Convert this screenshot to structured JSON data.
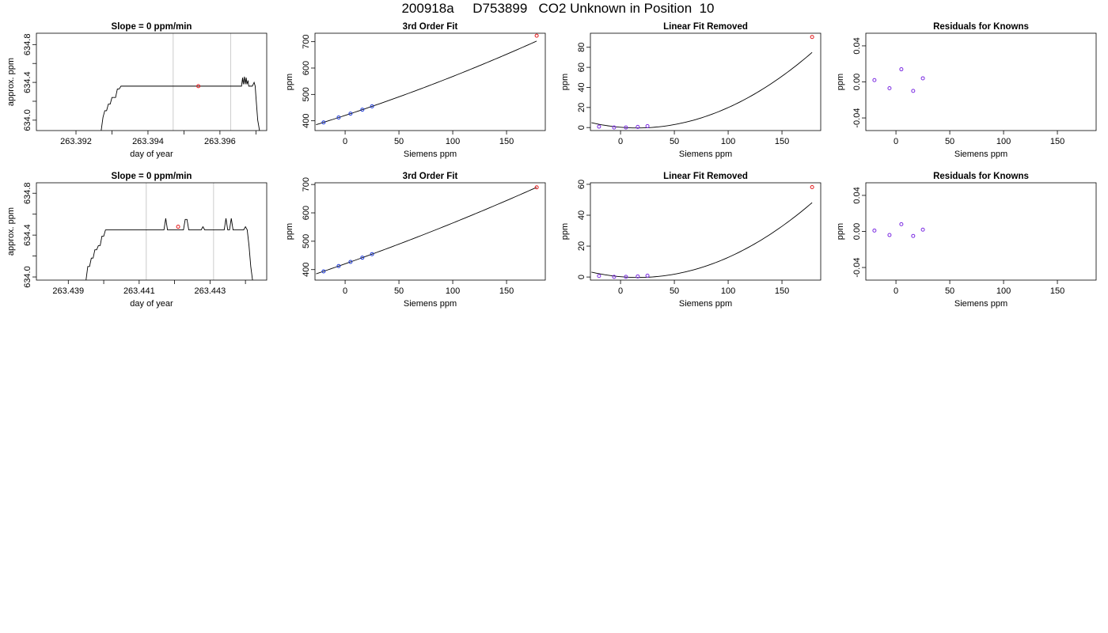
{
  "page_title": "200918a     D753899   CO2 Unknown in Position  10",
  "chart_data": [
    {
      "type": "line",
      "title": "Slope =  0  ppm/min",
      "xlabel": "day of year",
      "ylabel": "approx. ppm",
      "xlim": [
        263.3909,
        263.3973
      ],
      "ylim": [
        633.89,
        634.92
      ],
      "xticks": [
        263.392,
        263.393,
        263.394,
        263.395,
        263.396,
        263.397
      ],
      "xtick_labels": [
        "263.392",
        "",
        "263.394",
        "",
        "263.396",
        ""
      ],
      "yticks": [
        634.0,
        634.2,
        634.4,
        634.6,
        634.8
      ],
      "ytick_labels": [
        "634.0",
        "",
        "634.4",
        "",
        "634.8"
      ],
      "vlines": [
        263.3947,
        263.3963
      ],
      "vline_color": "#cccccc",
      "line_color": "#000000",
      "series": [
        {
          "x": [
            263.3927,
            263.39275,
            263.3928,
            263.39285,
            263.3929,
            263.39295,
            263.393,
            263.39305,
            263.3931,
            263.39315,
            263.3932,
            263.39325,
            263.3933,
            263.3966,
            263.39663,
            263.39665,
            263.39668,
            263.3967,
            263.39673,
            263.39675,
            263.39678,
            263.3968,
            263.39685,
            263.3969,
            263.39695,
            263.39698,
            263.397,
            263.39705,
            263.3971
          ],
          "y": [
            633.89,
            634.03,
            634.1,
            634.1,
            634.17,
            634.17,
            634.24,
            634.24,
            634.24,
            634.33,
            634.33,
            634.36,
            634.36,
            634.36,
            634.45,
            634.38,
            634.46,
            634.38,
            634.45,
            634.38,
            634.42,
            634.36,
            634.36,
            634.36,
            634.4,
            634.36,
            634.25,
            634.0,
            633.89
          ]
        }
      ],
      "highlight_points": [
        {
          "x": 263.3954,
          "y": 634.36,
          "color": "#e41a1c"
        }
      ]
    },
    {
      "type": "scatter",
      "title": "3rd Order Fit",
      "xlabel": "Siemens ppm",
      "ylabel": "ppm",
      "xlim": [
        -28,
        186
      ],
      "ylim": [
        363,
        732
      ],
      "xticks": [
        0,
        50,
        100,
        150
      ],
      "xtick_labels": [
        "0",
        "50",
        "100",
        "150"
      ],
      "yticks": [
        400,
        500,
        600,
        700
      ],
      "ytick_labels": [
        "400",
        "500",
        "600",
        "700"
      ],
      "fit_curve": {
        "a": 420.4,
        "b": 1.34,
        "c": 0.00137,
        "x0": -27,
        "x1": 178
      },
      "points": [
        {
          "x": -20,
          "y": 393.8,
          "color": "#1f3bd9"
        },
        {
          "x": -6,
          "y": 412.4,
          "color": "#1f3bd9"
        },
        {
          "x": 5,
          "y": 427.1,
          "color": "#1f3bd9"
        },
        {
          "x": 16,
          "y": 442.2,
          "color": "#1f3bd9"
        },
        {
          "x": 25,
          "y": 454.8,
          "color": "#1f3bd9"
        },
        {
          "x": 178,
          "y": 722.6,
          "color": "#e41a1c"
        }
      ]
    },
    {
      "type": "scatter",
      "title": "Linear Fit Removed",
      "xlabel": "Siemens ppm",
      "ylabel": "ppm",
      "xlim": [
        -28,
        186
      ],
      "ylim": [
        -3,
        94
      ],
      "xticks": [
        0,
        50,
        100,
        150
      ],
      "xtick_labels": [
        "0",
        "50",
        "100",
        "150"
      ],
      "yticks": [
        0,
        20,
        40,
        60,
        80
      ],
      "ytick_labels": [
        "0",
        "20",
        "40",
        "60",
        "80"
      ],
      "fit_curve": {
        "a": 0.3,
        "b": -0.09,
        "c": 0.00286,
        "x0": -27,
        "x1": 178
      },
      "points": [
        {
          "x": -20,
          "y": 0.9,
          "color": "#7b2be2"
        },
        {
          "x": -6,
          "y": 0.1,
          "color": "#7b2be2"
        },
        {
          "x": 5,
          "y": 0.1,
          "color": "#7b2be2"
        },
        {
          "x": 16,
          "y": 0.6,
          "color": "#7b2be2"
        },
        {
          "x": 25,
          "y": 1.4,
          "color": "#7b2be2"
        },
        {
          "x": 178,
          "y": 90.3,
          "color": "#e41a1c"
        }
      ]
    },
    {
      "type": "scatter",
      "title": "Residuals for Knowns",
      "xlabel": "Siemens ppm",
      "ylabel": "ppm",
      "xlim": [
        -28,
        186
      ],
      "ylim": [
        -0.054,
        0.054
      ],
      "xticks": [
        0,
        50,
        100,
        150
      ],
      "xtick_labels": [
        "0",
        "50",
        "100",
        "150"
      ],
      "yticks": [
        -0.04,
        0.0,
        0.04
      ],
      "ytick_labels": [
        "-0.04",
        "0.00",
        "0.04"
      ],
      "points": [
        {
          "x": -20,
          "y": 0.002,
          "color": "#7b2be2"
        },
        {
          "x": -6,
          "y": -0.007,
          "color": "#7b2be2"
        },
        {
          "x": 5,
          "y": 0.014,
          "color": "#7b2be2"
        },
        {
          "x": 16,
          "y": -0.01,
          "color": "#7b2be2"
        },
        {
          "x": 25,
          "y": 0.004,
          "color": "#7b2be2"
        }
      ]
    },
    {
      "type": "line",
      "title": "Slope =  0  ppm/min",
      "xlabel": "day of year",
      "ylabel": "approx. ppm",
      "xlim": [
        263.4381,
        263.4446
      ],
      "ylim": [
        633.97,
        634.9
      ],
      "xticks": [
        263.439,
        263.44,
        263.441,
        263.442,
        263.443,
        263.444
      ],
      "xtick_labels": [
        "263.439",
        "",
        "263.441",
        "",
        "263.443",
        ""
      ],
      "yticks": [
        634.0,
        634.2,
        634.4,
        634.6,
        634.8
      ],
      "ytick_labels": [
        "634.0",
        "",
        "634.4",
        "",
        "634.8"
      ],
      "vlines": [
        263.4412,
        263.4431
      ],
      "vline_color": "#cccccc",
      "line_color": "#000000",
      "series": [
        {
          "x": [
            263.4395,
            263.43955,
            263.4396,
            263.43965,
            263.4397,
            263.43975,
            263.4398,
            263.43985,
            263.4399,
            263.43995,
            263.44,
            263.44005,
            263.4401,
            263.4417,
            263.44175,
            263.4418,
            263.44185,
            263.4419,
            263.44225,
            263.4423,
            263.44235,
            263.4424,
            263.44245,
            263.4425,
            263.44275,
            263.4428,
            263.44285,
            263.4434,
            263.44345,
            263.4435,
            263.44355,
            263.4436,
            263.44365,
            263.4437,
            263.44375,
            263.4438,
            263.44385,
            263.4439,
            263.44395,
            263.444,
            263.44405,
            263.4441,
            263.44415,
            263.4442
          ],
          "y": [
            633.97,
            634.1,
            634.1,
            634.18,
            634.18,
            634.26,
            634.26,
            634.3,
            634.3,
            634.39,
            634.39,
            634.45,
            634.45,
            634.45,
            634.56,
            634.45,
            634.45,
            634.45,
            634.45,
            634.55,
            634.55,
            634.45,
            634.45,
            634.45,
            634.45,
            634.48,
            634.45,
            634.45,
            634.56,
            634.45,
            634.45,
            634.56,
            634.45,
            634.45,
            634.45,
            634.45,
            634.45,
            634.45,
            634.45,
            634.48,
            634.45,
            634.3,
            634.1,
            633.97
          ]
        }
      ],
      "highlight_points": [
        {
          "x": 263.4421,
          "y": 634.48,
          "color": "#e41a1c"
        }
      ]
    },
    {
      "type": "scatter",
      "title": "3rd Order Fit",
      "xlabel": "Siemens ppm",
      "ylabel": "ppm",
      "xlim": [
        -28,
        186
      ],
      "ylim": [
        363,
        706
      ],
      "xticks": [
        0,
        50,
        100,
        150
      ],
      "xtick_labels": [
        "0",
        "50",
        "100",
        "150"
      ],
      "yticks": [
        400,
        500,
        600,
        700
      ],
      "ytick_labels": [
        "400",
        "500",
        "600",
        "700"
      ],
      "fit_curve": {
        "a": 420.4,
        "b": 1.34,
        "c": 0.00098,
        "x0": -27,
        "x1": 178
      },
      "points": [
        {
          "x": -20,
          "y": 393.6,
          "color": "#1f3bd9"
        },
        {
          "x": -6,
          "y": 412.4,
          "color": "#1f3bd9"
        },
        {
          "x": 5,
          "y": 427.1,
          "color": "#1f3bd9"
        },
        {
          "x": 16,
          "y": 442.0,
          "color": "#1f3bd9"
        },
        {
          "x": 25,
          "y": 454.5,
          "color": "#1f3bd9"
        },
        {
          "x": 178,
          "y": 690.0,
          "color": "#e41a1c"
        }
      ]
    },
    {
      "type": "scatter",
      "title": "Linear Fit Removed",
      "xlabel": "Siemens ppm",
      "ylabel": "ppm",
      "xlim": [
        -28,
        186
      ],
      "ylim": [
        -2,
        61
      ],
      "xticks": [
        0,
        50,
        100,
        150
      ],
      "xtick_labels": [
        "0",
        "50",
        "100",
        "150"
      ],
      "yticks": [
        0,
        20,
        40,
        60
      ],
      "ytick_labels": [
        "0",
        "20",
        "40",
        "60"
      ],
      "fit_curve": {
        "a": 0.2,
        "b": -0.06,
        "c": 0.00185,
        "x0": -27,
        "x1": 178
      },
      "points": [
        {
          "x": -20,
          "y": 0.7,
          "color": "#7b2be2"
        },
        {
          "x": -6,
          "y": 0.1,
          "color": "#7b2be2"
        },
        {
          "x": 5,
          "y": 0.1,
          "color": "#7b2be2"
        },
        {
          "x": 16,
          "y": 0.4,
          "color": "#7b2be2"
        },
        {
          "x": 25,
          "y": 0.9,
          "color": "#7b2be2"
        },
        {
          "x": 178,
          "y": 58.2,
          "color": "#e41a1c"
        }
      ]
    },
    {
      "type": "scatter",
      "title": "Residuals for Knowns",
      "xlabel": "Siemens ppm",
      "ylabel": "ppm",
      "xlim": [
        -28,
        186
      ],
      "ylim": [
        -0.054,
        0.054
      ],
      "xticks": [
        0,
        50,
        100,
        150
      ],
      "xtick_labels": [
        "0",
        "50",
        "100",
        "150"
      ],
      "yticks": [
        -0.04,
        0.0,
        0.04
      ],
      "ytick_labels": [
        "-0.04",
        "0.00",
        "0.04"
      ],
      "points": [
        {
          "x": -20,
          "y": 0.001,
          "color": "#7b2be2"
        },
        {
          "x": -6,
          "y": -0.004,
          "color": "#7b2be2"
        },
        {
          "x": 5,
          "y": 0.008,
          "color": "#7b2be2"
        },
        {
          "x": 16,
          "y": -0.005,
          "color": "#7b2be2"
        },
        {
          "x": 25,
          "y": 0.002,
          "color": "#7b2be2"
        }
      ]
    }
  ]
}
